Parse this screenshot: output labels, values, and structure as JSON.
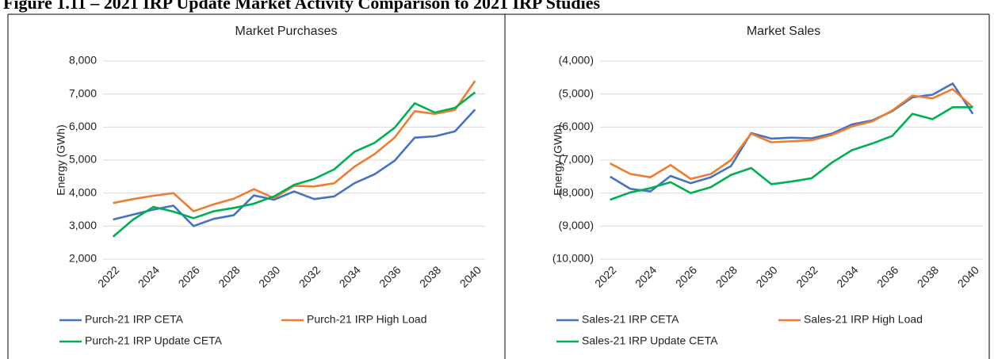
{
  "figure_title": "Figure 1.11 – 2021 IRP Update Market Activity Comparison to 2021 IRP Studies",
  "chart_data": [
    {
      "type": "line",
      "title": "Market Purchases",
      "y_label": "Energy (GWh)",
      "x": [
        2022,
        2023,
        2024,
        2025,
        2026,
        2027,
        2028,
        2029,
        2030,
        2031,
        2032,
        2033,
        2034,
        2035,
        2036,
        2037,
        2038,
        2039,
        2040
      ],
      "xlim": [
        2022,
        2040
      ],
      "xticks": [
        2022,
        2024,
        2026,
        2028,
        2030,
        2032,
        2034,
        2036,
        2038,
        2040
      ],
      "ylim": [
        2000,
        8000
      ],
      "yticks": [
        {
          "value": 2000,
          "label": "2,000"
        },
        {
          "value": 3000,
          "label": "3,000"
        },
        {
          "value": 4000,
          "label": "4,000"
        },
        {
          "value": 5000,
          "label": "5,000"
        },
        {
          "value": 6000,
          "label": "6,000"
        },
        {
          "value": 7000,
          "label": "7,000"
        },
        {
          "value": 8000,
          "label": "8,000"
        }
      ],
      "grid": true,
      "series": [
        {
          "name": "Purch-21 IRP CETA",
          "color": "#4472c4",
          "values": [
            3200,
            3350,
            3500,
            3620,
            3000,
            3220,
            3330,
            3930,
            3800,
            4050,
            3820,
            3900,
            4300,
            4570,
            4980,
            5680,
            5720,
            5870,
            6530
          ]
        },
        {
          "name": "Purch-21 IRP High Load",
          "color": "#ed7d31",
          "values": [
            3700,
            3820,
            3920,
            4000,
            3450,
            3660,
            3830,
            4120,
            3850,
            4220,
            4200,
            4300,
            4800,
            5180,
            5680,
            6480,
            6400,
            6520,
            7400
          ]
        },
        {
          "name": "Purch-21 IRP Update CETA",
          "color": "#00b050",
          "values": [
            2680,
            3200,
            3580,
            3440,
            3240,
            3450,
            3550,
            3680,
            3900,
            4250,
            4430,
            4720,
            5250,
            5520,
            5980,
            6720,
            6440,
            6580,
            7050
          ]
        }
      ]
    },
    {
      "type": "line",
      "title": "Market Sales",
      "y_label": "Energy (GWh)",
      "x": [
        2022,
        2023,
        2024,
        2025,
        2026,
        2027,
        2028,
        2029,
        2030,
        2031,
        2032,
        2033,
        2034,
        2035,
        2036,
        2037,
        2038,
        2039,
        2040
      ],
      "xlim": [
        2022,
        2040
      ],
      "xticks": [
        2022,
        2024,
        2026,
        2028,
        2030,
        2032,
        2034,
        2036,
        2038,
        2040
      ],
      "ylim": [
        -10000,
        -4000
      ],
      "yticks": [
        {
          "value": -10000,
          "label": "(10,000)"
        },
        {
          "value": -9000,
          "label": "(9,000)"
        },
        {
          "value": -8000,
          "label": "(8,000)"
        },
        {
          "value": -7000,
          "label": "(7,000)"
        },
        {
          "value": -6000,
          "label": "(6,000)"
        },
        {
          "value": -5000,
          "label": "(5,000)"
        },
        {
          "value": -4000,
          "label": "(4,000)"
        }
      ],
      "grid": true,
      "series": [
        {
          "name": "Sales-21 IRP CETA",
          "color": "#4472c4",
          "values": [
            -7500,
            -7870,
            -7950,
            -7480,
            -7700,
            -7520,
            -7180,
            -6180,
            -6350,
            -6320,
            -6340,
            -6200,
            -5920,
            -5800,
            -5520,
            -5100,
            -5020,
            -4680,
            -5600
          ]
        },
        {
          "name": "Sales-21 IRP High Load",
          "color": "#ed7d31",
          "values": [
            -7100,
            -7420,
            -7520,
            -7150,
            -7570,
            -7420,
            -7000,
            -6200,
            -6460,
            -6430,
            -6400,
            -6240,
            -5980,
            -5830,
            -5500,
            -5050,
            -5130,
            -4850,
            -5400
          ]
        },
        {
          "name": "Sales-21 IRP Update CETA",
          "color": "#00b050",
          "values": [
            -8200,
            -7980,
            -7850,
            -7670,
            -8000,
            -7820,
            -7450,
            -7240,
            -7730,
            -7650,
            -7550,
            -7080,
            -6700,
            -6500,
            -6270,
            -5600,
            -5760,
            -5400,
            -5400
          ]
        }
      ]
    }
  ]
}
